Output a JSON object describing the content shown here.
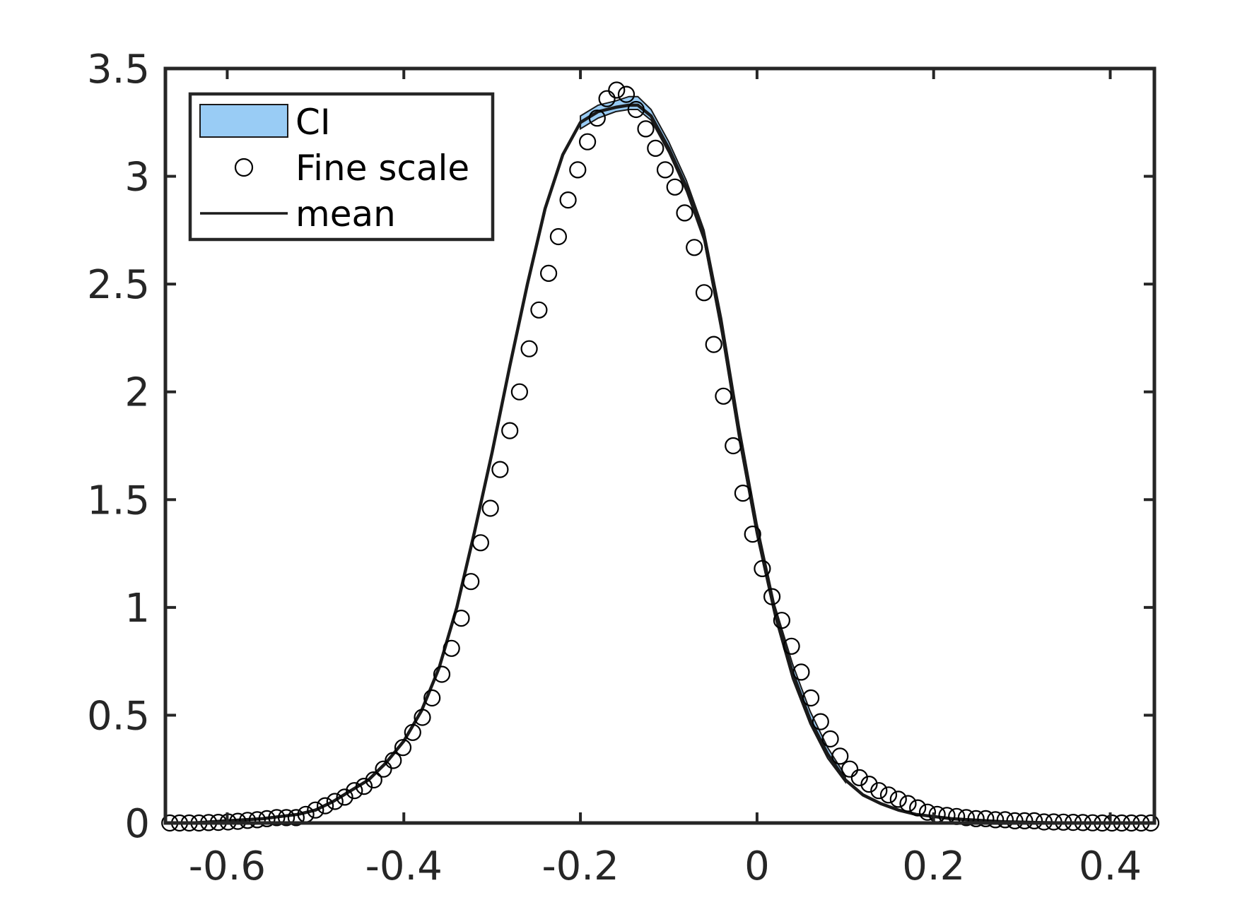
{
  "chart_data": {
    "type": "line",
    "title": "",
    "xlabel": "",
    "ylabel": "",
    "xlim": [
      -0.67,
      0.45
    ],
    "ylim": [
      0,
      3.5
    ],
    "xticks": [
      -0.6,
      -0.4,
      -0.2,
      0,
      0.2,
      0.4
    ],
    "xtick_labels": [
      "-0.6",
      "-0.4",
      "-0.2",
      "0",
      "0.2",
      "0.4"
    ],
    "yticks": [
      0,
      0.5,
      1,
      1.5,
      2,
      2.5,
      3,
      3.5
    ],
    "ytick_labels": [
      "0",
      "0.5",
      "1",
      "1.5",
      "2",
      "2.5",
      "3",
      "3.5"
    ],
    "grid": false,
    "legend_position": "top-left",
    "legend": [
      {
        "key": "ci",
        "label": "CI"
      },
      {
        "key": "fine",
        "label": "Fine scale"
      },
      {
        "key": "mean",
        "label": "mean"
      }
    ],
    "colors": {
      "ci_fill": "#99ccf5",
      "ci_edge": "#1a1a1a",
      "mean_line": "#1a1a1a",
      "markers": "#000000",
      "axes": "#262626"
    },
    "series": [
      {
        "name": "mean",
        "x": [
          -0.67,
          -0.64,
          -0.62,
          -0.6,
          -0.58,
          -0.56,
          -0.54,
          -0.52,
          -0.5,
          -0.48,
          -0.46,
          -0.44,
          -0.42,
          -0.4,
          -0.38,
          -0.36,
          -0.34,
          -0.32,
          -0.3,
          -0.28,
          -0.26,
          -0.24,
          -0.22,
          -0.2,
          -0.18,
          -0.16,
          -0.145,
          -0.135,
          -0.12,
          -0.1,
          -0.08,
          -0.06,
          -0.04,
          -0.02,
          0,
          0.02,
          0.04,
          0.06,
          0.08,
          0.1,
          0.12,
          0.14,
          0.16,
          0.18,
          0.2,
          0.22,
          0.24,
          0.26,
          0.28,
          0.3,
          0.32,
          0.34,
          0.36,
          0.38,
          0.4,
          0.42,
          0.45
        ],
        "y": [
          0,
          0,
          0.005,
          0.01,
          0.015,
          0.02,
          0.03,
          0.04,
          0.06,
          0.1,
          0.15,
          0.2,
          0.28,
          0.38,
          0.52,
          0.72,
          1.0,
          1.35,
          1.72,
          2.12,
          2.5,
          2.85,
          3.1,
          3.25,
          3.3,
          3.32,
          3.33,
          3.33,
          3.28,
          3.13,
          2.95,
          2.72,
          2.3,
          1.8,
          1.35,
          0.98,
          0.7,
          0.48,
          0.32,
          0.2,
          0.13,
          0.09,
          0.06,
          0.04,
          0.03,
          0.02,
          0.015,
          0.01,
          0.006,
          0.004,
          0.002,
          0.001,
          0,
          0,
          0,
          0,
          0
        ]
      },
      {
        "name": "CI",
        "x": [
          -0.2,
          -0.18,
          -0.16,
          -0.145,
          -0.135,
          -0.12,
          -0.1,
          -0.08,
          -0.06,
          -0.04,
          -0.02,
          0,
          0.02,
          0.04,
          0.06,
          0.08,
          0.1
        ],
        "lower": [
          3.22,
          3.27,
          3.3,
          3.31,
          3.31,
          3.26,
          3.11,
          2.93,
          2.7,
          2.27,
          1.77,
          1.33,
          0.96,
          0.67,
          0.46,
          0.3,
          0.19
        ],
        "upper": [
          3.28,
          3.33,
          3.35,
          3.37,
          3.37,
          3.31,
          3.16,
          2.98,
          2.75,
          2.34,
          1.84,
          1.39,
          1.01,
          0.74,
          0.52,
          0.35,
          0.22
        ]
      },
      {
        "name": "Fine scale",
        "x": [
          -0.665,
          -0.654,
          -0.643,
          -0.632,
          -0.621,
          -0.61,
          -0.599,
          -0.588,
          -0.577,
          -0.566,
          -0.555,
          -0.544,
          -0.533,
          -0.522,
          -0.511,
          -0.5,
          -0.489,
          -0.478,
          -0.467,
          -0.456,
          -0.445,
          -0.434,
          -0.423,
          -0.412,
          -0.401,
          -0.39,
          -0.379,
          -0.368,
          -0.357,
          -0.346,
          -0.335,
          -0.324,
          -0.313,
          -0.302,
          -0.291,
          -0.28,
          -0.269,
          -0.258,
          -0.247,
          -0.236,
          -0.225,
          -0.214,
          -0.203,
          -0.192,
          -0.181,
          -0.17,
          -0.159,
          -0.148,
          -0.137,
          -0.126,
          -0.115,
          -0.104,
          -0.093,
          -0.082,
          -0.071,
          -0.06,
          -0.049,
          -0.038,
          -0.027,
          -0.016,
          -0.005,
          0.006,
          0.017,
          0.028,
          0.039,
          0.05,
          0.061,
          0.072,
          0.083,
          0.094,
          0.105,
          0.116,
          0.127,
          0.138,
          0.149,
          0.16,
          0.171,
          0.182,
          0.193,
          0.204,
          0.215,
          0.226,
          0.237,
          0.248,
          0.259,
          0.27,
          0.281,
          0.292,
          0.303,
          0.314,
          0.325,
          0.336,
          0.347,
          0.358,
          0.369,
          0.38,
          0.391,
          0.402,
          0.413,
          0.424,
          0.435,
          0.446
        ],
        "y": [
          0,
          0,
          0,
          0,
          0.002,
          0.003,
          0.005,
          0.008,
          0.012,
          0.015,
          0.02,
          0.025,
          0.025,
          0.025,
          0.04,
          0.06,
          0.08,
          0.1,
          0.12,
          0.15,
          0.17,
          0.2,
          0.25,
          0.29,
          0.35,
          0.42,
          0.49,
          0.58,
          0.69,
          0.81,
          0.95,
          1.12,
          1.3,
          1.46,
          1.64,
          1.82,
          2.0,
          2.2,
          2.38,
          2.55,
          2.72,
          2.89,
          3.03,
          3.16,
          3.27,
          3.36,
          3.4,
          3.38,
          3.31,
          3.22,
          3.13,
          3.03,
          2.95,
          2.83,
          2.67,
          2.46,
          2.22,
          1.98,
          1.75,
          1.53,
          1.34,
          1.18,
          1.05,
          0.94,
          0.82,
          0.7,
          0.58,
          0.47,
          0.39,
          0.31,
          0.25,
          0.21,
          0.18,
          0.15,
          0.13,
          0.11,
          0.09,
          0.07,
          0.05,
          0.04,
          0.035,
          0.03,
          0.025,
          0.02,
          0.02,
          0.015,
          0.015,
          0.01,
          0.01,
          0.01,
          0.005,
          0.005,
          0.004,
          0.003,
          0.002,
          0.001,
          0,
          0,
          0,
          0,
          0,
          0
        ]
      }
    ]
  }
}
